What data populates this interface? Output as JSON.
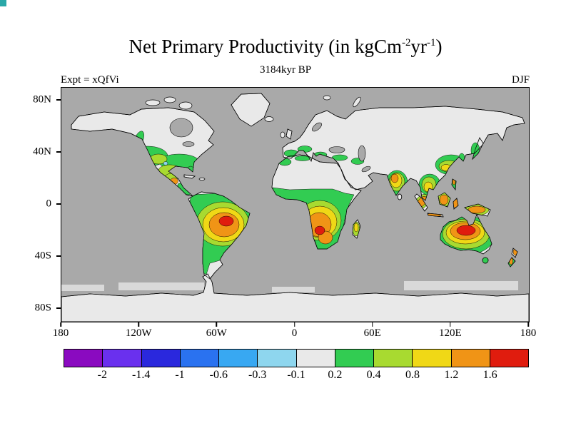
{
  "header": {
    "title_prefix": "Net Primary Productivity (in kgCm",
    "title_sup1": "-2",
    "title_mid": "yr",
    "title_sup2": "-1",
    "title_suffix": ")",
    "subtitle": "3184kyr BP",
    "experiment_label": "Expt = xQfVi",
    "season_label": "DJF"
  },
  "map_colors": {
    "ocean": "#a9a9a9",
    "land": "#e9e9e9",
    "sea_ice": "#d9d9d9"
  },
  "chart_data": {
    "type": "heatmap",
    "title": "Net Primary Productivity (in kgCm-2 yr-1)",
    "subtitle_time": "3184kyr BP",
    "experiment": "xQfVi",
    "season": "DJF",
    "projection": "equirectangular world map, 90N-90S, 180W-180E",
    "units": "kgC m-2 yr-1",
    "lon_tick_labels": [
      "180",
      "120W",
      "60W",
      "0",
      "60E",
      "120E",
      "180"
    ],
    "lat_tick_labels": [
      "80N",
      "40N",
      "0",
      "40S",
      "80S"
    ],
    "contour_levels": [
      -2,
      -1.4,
      -1,
      -0.6,
      -0.3,
      -0.1,
      0.2,
      0.4,
      0.8,
      1.2,
      1.6
    ],
    "palette": [
      "#8a0ac0",
      "#6a30ee",
      "#2a28dd",
      "#2a72f0",
      "#38a8f2",
      "#8ed6ee",
      "#e9e9e9",
      "#32cc52",
      "#a8da30",
      "#f0d816",
      "#f09416",
      "#e01c0e"
    ],
    "legend_position": "bottom horizontal colorbar, 12 cells, labels at cell boundaries",
    "grid": false,
    "regions": [
      {
        "area": "Amazon basin (tropical South America)",
        "npp_range": "0.8 to >1.6"
      },
      {
        "area": "Congo basin and southern Africa",
        "npp_range": "0.8 to 1.6"
      },
      {
        "area": "North-central Australia",
        "npp_range": "1.2 to >1.6 (strong maximum)"
      },
      {
        "area": "Southern USA, Mexico, Central America",
        "npp_range": "0.2 to 0.8"
      },
      {
        "area": "India and Indochina",
        "npp_range": "0.4 to 1.2"
      },
      {
        "area": "Maritime continent (Sumatra, Java, Borneo, New Guinea)",
        "npp_range": "0.8 to 1.2"
      },
      {
        "area": "Southeast China, Korea, Japan",
        "npp_range": "0.2 to 0.8"
      },
      {
        "area": "Mediterranean Europe, Asia Minor, NW Africa",
        "npp_range": "0.2 to 0.4"
      },
      {
        "area": "Central Chile and west coast of South America",
        "npp_range": "0.2 to 0.4"
      },
      {
        "area": "New Zealand and Tasmania",
        "npp_range": "0.4 to 1.2"
      },
      {
        "area": "Madagascar",
        "npp_range": "0.4 to 0.8"
      },
      {
        "area": "Deserts, central Asia, high latitudes, ice sheets",
        "npp_range": "-0.1 to 0.2 (near zero, shown pale gray)"
      }
    ]
  }
}
